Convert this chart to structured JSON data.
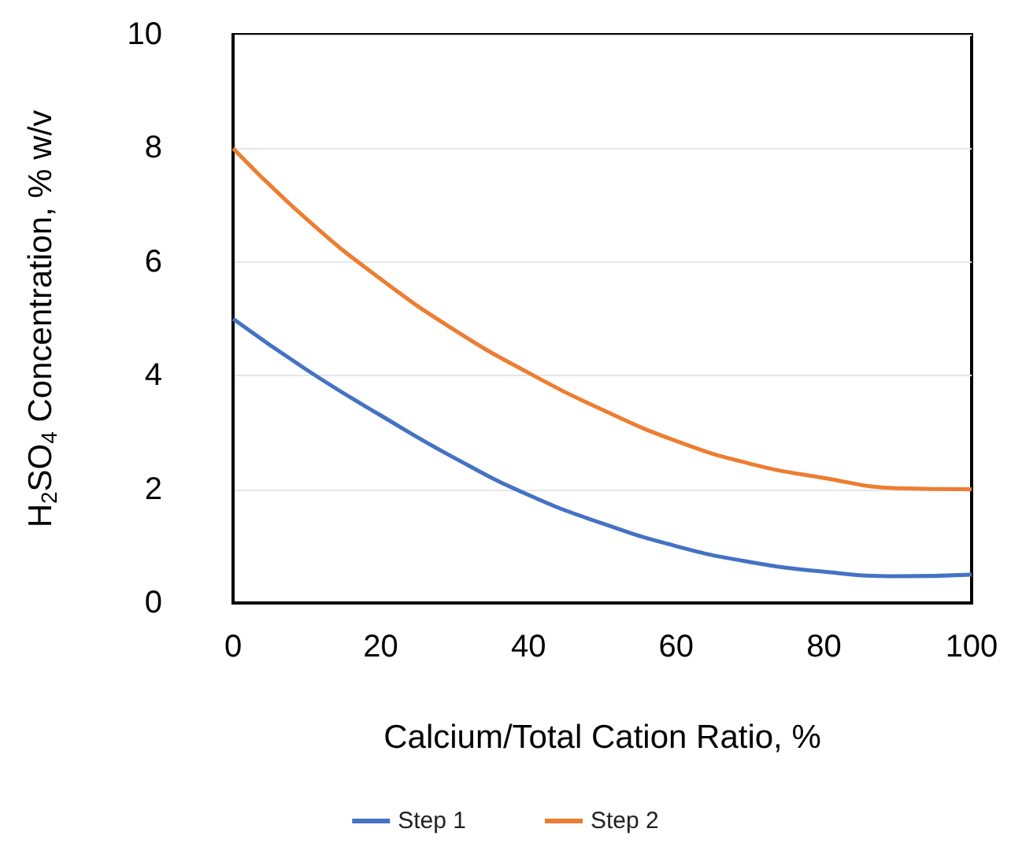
{
  "chart_data": {
    "type": "line",
    "xlabel": "Calcium/Total Cation Ratio, %",
    "ylabel": "H$_{2}$SO$_{4}$ Concentration, % w/v",
    "x": [
      0,
      10,
      20,
      30,
      40,
      50,
      60,
      70,
      80,
      90,
      100
    ],
    "series": [
      {
        "name": "Step 1",
        "color": "#4472c4",
        "values": [
          5,
          4.1,
          3.3,
          2.55,
          1.9,
          1.4,
          1.0,
          0.72,
          0.55,
          0.47,
          0.5
        ]
      },
      {
        "name": "Step 2",
        "color": "#ed7d31",
        "values": [
          8,
          6.75,
          5.7,
          4.8,
          4.05,
          3.4,
          2.85,
          2.45,
          2.2,
          2.02,
          2.0
        ]
      }
    ],
    "xlim": [
      0,
      100
    ],
    "xticks": [
      0,
      20,
      40,
      60,
      80,
      100
    ],
    "ylim": [
      0,
      10
    ],
    "yticks": [
      0,
      2,
      4,
      6,
      8,
      10
    ],
    "grid": "y",
    "legend": "bottom",
    "marker": "none",
    "line_style": "solid"
  }
}
